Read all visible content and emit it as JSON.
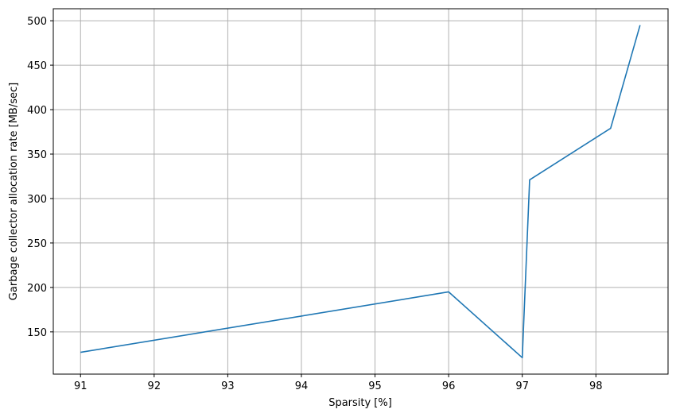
{
  "chart_data": {
    "type": "line",
    "title": "",
    "xlabel": "Sparsity [%]",
    "ylabel": "Garbage collector allocation rate [MB/sec]",
    "xlim": [
      90.63,
      98.98
    ],
    "ylim": [
      102.5,
      513.5
    ],
    "xticks": [
      91,
      92,
      93,
      94,
      95,
      96,
      97,
      98
    ],
    "yticks": [
      150,
      200,
      250,
      300,
      350,
      400,
      450,
      500
    ],
    "grid": true,
    "series": [
      {
        "color": "#1f77b4",
        "x": [
          91.0,
          96.0,
          97.0,
          97.1,
          98.2,
          98.6
        ],
        "y": [
          127,
          195,
          121,
          321,
          379,
          495
        ]
      }
    ]
  }
}
